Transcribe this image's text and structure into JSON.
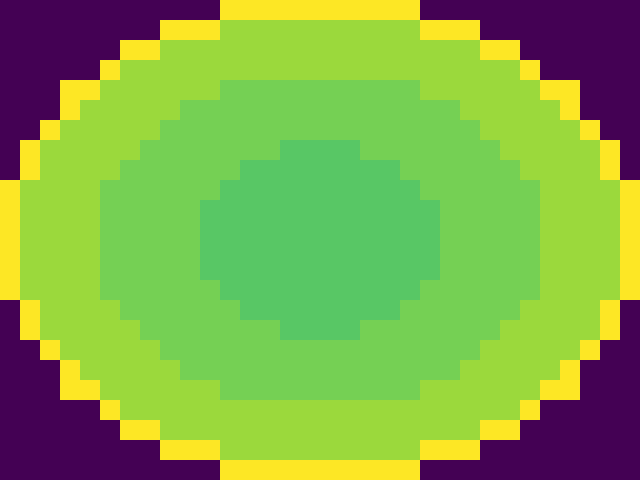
{
  "chart_data": {
    "type": "heatmap",
    "tick_labels": false,
    "cells": [
      [
        0,
        0,
        0,
        0,
        0,
        0,
        0,
        0,
        0,
        0,
        0,
        1,
        1,
        1,
        1,
        1,
        1,
        1,
        1,
        1,
        1,
        0,
        0,
        0,
        0,
        0,
        0,
        0,
        0,
        0,
        0,
        0
      ],
      [
        0,
        0,
        0,
        0,
        0,
        0,
        0,
        0,
        1,
        1,
        1,
        0.85,
        0.85,
        0.85,
        0.85,
        0.85,
        0.85,
        0.85,
        0.85,
        0.85,
        0.85,
        1,
        1,
        1,
        0,
        0,
        0,
        0,
        0,
        0,
        0,
        0
      ],
      [
        0,
        0,
        0,
        0,
        0,
        0,
        1,
        1,
        0.85,
        0.85,
        0.85,
        0.85,
        0.85,
        0.85,
        0.85,
        0.85,
        0.85,
        0.85,
        0.85,
        0.85,
        0.85,
        0.85,
        0.85,
        0.85,
        1,
        1,
        0,
        0,
        0,
        0,
        0,
        0
      ],
      [
        0,
        0,
        0,
        0,
        0,
        1,
        0.85,
        0.85,
        0.85,
        0.85,
        0.85,
        0.85,
        0.85,
        0.85,
        0.85,
        0.85,
        0.85,
        0.85,
        0.85,
        0.85,
        0.85,
        0.85,
        0.85,
        0.85,
        0.85,
        0.85,
        1,
        0,
        0,
        0,
        0,
        0
      ],
      [
        0,
        0,
        0,
        1,
        1,
        0.85,
        0.85,
        0.85,
        0.85,
        0.85,
        0.85,
        0.79,
        0.79,
        0.79,
        0.79,
        0.79,
        0.79,
        0.79,
        0.79,
        0.79,
        0.79,
        0.85,
        0.85,
        0.85,
        0.85,
        0.85,
        0.85,
        1,
        1,
        0,
        0,
        0
      ],
      [
        0,
        0,
        0,
        1,
        0.85,
        0.85,
        0.85,
        0.85,
        0.85,
        0.79,
        0.79,
        0.79,
        0.79,
        0.79,
        0.79,
        0.79,
        0.79,
        0.79,
        0.79,
        0.79,
        0.79,
        0.79,
        0.79,
        0.85,
        0.85,
        0.85,
        0.85,
        0.85,
        1,
        0,
        0,
        0
      ],
      [
        0,
        0,
        1,
        0.85,
        0.85,
        0.85,
        0.85,
        0.85,
        0.79,
        0.79,
        0.79,
        0.79,
        0.79,
        0.79,
        0.79,
        0.79,
        0.79,
        0.79,
        0.79,
        0.79,
        0.79,
        0.79,
        0.79,
        0.79,
        0.85,
        0.85,
        0.85,
        0.85,
        0.85,
        1,
        0,
        0
      ],
      [
        0,
        1,
        0.85,
        0.85,
        0.85,
        0.85,
        0.85,
        0.79,
        0.79,
        0.79,
        0.79,
        0.79,
        0.79,
        0.79,
        0.74,
        0.74,
        0.74,
        0.74,
        0.79,
        0.79,
        0.79,
        0.79,
        0.79,
        0.79,
        0.79,
        0.85,
        0.85,
        0.85,
        0.85,
        0.85,
        1,
        0
      ],
      [
        0,
        1,
        0.85,
        0.85,
        0.85,
        0.85,
        0.79,
        0.79,
        0.79,
        0.79,
        0.79,
        0.79,
        0.74,
        0.74,
        0.74,
        0.74,
        0.74,
        0.74,
        0.74,
        0.74,
        0.79,
        0.79,
        0.79,
        0.79,
        0.79,
        0.79,
        0.85,
        0.85,
        0.85,
        0.85,
        1,
        0
      ],
      [
        1,
        0.85,
        0.85,
        0.85,
        0.85,
        0.79,
        0.79,
        0.79,
        0.79,
        0.79,
        0.79,
        0.74,
        0.74,
        0.74,
        0.74,
        0.74,
        0.74,
        0.74,
        0.74,
        0.74,
        0.74,
        0.79,
        0.79,
        0.79,
        0.79,
        0.79,
        0.79,
        0.85,
        0.85,
        0.85,
        0.85,
        1
      ],
      [
        1,
        0.85,
        0.85,
        0.85,
        0.85,
        0.79,
        0.79,
        0.79,
        0.79,
        0.79,
        0.74,
        0.74,
        0.74,
        0.74,
        0.74,
        0.74,
        0.74,
        0.74,
        0.74,
        0.74,
        0.74,
        0.74,
        0.79,
        0.79,
        0.79,
        0.79,
        0.79,
        0.85,
        0.85,
        0.85,
        0.85,
        1
      ],
      [
        1,
        0.85,
        0.85,
        0.85,
        0.85,
        0.79,
        0.79,
        0.79,
        0.79,
        0.79,
        0.74,
        0.74,
        0.74,
        0.74,
        0.74,
        0.74,
        0.74,
        0.74,
        0.74,
        0.74,
        0.74,
        0.74,
        0.79,
        0.79,
        0.79,
        0.79,
        0.79,
        0.85,
        0.85,
        0.85,
        0.85,
        1
      ],
      [
        1,
        0.85,
        0.85,
        0.85,
        0.85,
        0.79,
        0.79,
        0.79,
        0.79,
        0.79,
        0.74,
        0.74,
        0.74,
        0.74,
        0.74,
        0.74,
        0.74,
        0.74,
        0.74,
        0.74,
        0.74,
        0.74,
        0.79,
        0.79,
        0.79,
        0.79,
        0.79,
        0.85,
        0.85,
        0.85,
        0.85,
        1
      ],
      [
        1,
        0.85,
        0.85,
        0.85,
        0.85,
        0.79,
        0.79,
        0.79,
        0.79,
        0.79,
        0.74,
        0.74,
        0.74,
        0.74,
        0.74,
        0.74,
        0.74,
        0.74,
        0.74,
        0.74,
        0.74,
        0.74,
        0.79,
        0.79,
        0.79,
        0.79,
        0.79,
        0.85,
        0.85,
        0.85,
        0.85,
        1
      ],
      [
        1,
        0.85,
        0.85,
        0.85,
        0.85,
        0.79,
        0.79,
        0.79,
        0.79,
        0.79,
        0.79,
        0.74,
        0.74,
        0.74,
        0.74,
        0.74,
        0.74,
        0.74,
        0.74,
        0.74,
        0.74,
        0.79,
        0.79,
        0.79,
        0.79,
        0.79,
        0.79,
        0.85,
        0.85,
        0.85,
        0.85,
        1
      ],
      [
        0,
        1,
        0.85,
        0.85,
        0.85,
        0.85,
        0.79,
        0.79,
        0.79,
        0.79,
        0.79,
        0.79,
        0.74,
        0.74,
        0.74,
        0.74,
        0.74,
        0.74,
        0.74,
        0.74,
        0.79,
        0.79,
        0.79,
        0.79,
        0.79,
        0.79,
        0.85,
        0.85,
        0.85,
        0.85,
        1,
        0
      ],
      [
        0,
        1,
        0.85,
        0.85,
        0.85,
        0.85,
        0.85,
        0.79,
        0.79,
        0.79,
        0.79,
        0.79,
        0.79,
        0.79,
        0.74,
        0.74,
        0.74,
        0.74,
        0.79,
        0.79,
        0.79,
        0.79,
        0.79,
        0.79,
        0.79,
        0.85,
        0.85,
        0.85,
        0.85,
        0.85,
        1,
        0
      ],
      [
        0,
        0,
        1,
        0.85,
        0.85,
        0.85,
        0.85,
        0.85,
        0.79,
        0.79,
        0.79,
        0.79,
        0.79,
        0.79,
        0.79,
        0.79,
        0.79,
        0.79,
        0.79,
        0.79,
        0.79,
        0.79,
        0.79,
        0.79,
        0.85,
        0.85,
        0.85,
        0.85,
        0.85,
        1,
        0,
        0
      ],
      [
        0,
        0,
        0,
        1,
        0.85,
        0.85,
        0.85,
        0.85,
        0.85,
        0.79,
        0.79,
        0.79,
        0.79,
        0.79,
        0.79,
        0.79,
        0.79,
        0.79,
        0.79,
        0.79,
        0.79,
        0.79,
        0.79,
        0.85,
        0.85,
        0.85,
        0.85,
        0.85,
        1,
        0,
        0,
        0
      ],
      [
        0,
        0,
        0,
        1,
        1,
        0.85,
        0.85,
        0.85,
        0.85,
        0.85,
        0.85,
        0.79,
        0.79,
        0.79,
        0.79,
        0.79,
        0.79,
        0.79,
        0.79,
        0.79,
        0.79,
        0.85,
        0.85,
        0.85,
        0.85,
        0.85,
        0.85,
        1,
        1,
        0,
        0,
        0
      ],
      [
        0,
        0,
        0,
        0,
        0,
        1,
        0.85,
        0.85,
        0.85,
        0.85,
        0.85,
        0.85,
        0.85,
        0.85,
        0.85,
        0.85,
        0.85,
        0.85,
        0.85,
        0.85,
        0.85,
        0.85,
        0.85,
        0.85,
        0.85,
        0.85,
        1,
        0,
        0,
        0,
        0,
        0
      ],
      [
        0,
        0,
        0,
        0,
        0,
        0,
        1,
        1,
        0.85,
        0.85,
        0.85,
        0.85,
        0.85,
        0.85,
        0.85,
        0.85,
        0.85,
        0.85,
        0.85,
        0.85,
        0.85,
        0.85,
        0.85,
        0.85,
        1,
        1,
        0,
        0,
        0,
        0,
        0,
        0
      ],
      [
        0,
        0,
        0,
        0,
        0,
        0,
        0,
        0,
        1,
        1,
        1,
        0.85,
        0.85,
        0.85,
        0.85,
        0.85,
        0.85,
        0.85,
        0.85,
        0.85,
        0.85,
        1,
        1,
        1,
        0,
        0,
        0,
        0,
        0,
        0,
        0,
        0
      ],
      [
        0,
        0,
        0,
        0,
        0,
        0,
        0,
        0,
        0,
        0,
        0,
        1,
        1,
        1,
        1,
        1,
        1,
        1,
        1,
        1,
        1,
        0,
        0,
        0,
        0,
        0,
        0,
        0,
        0,
        0,
        0,
        0
      ]
    ]
  }
}
